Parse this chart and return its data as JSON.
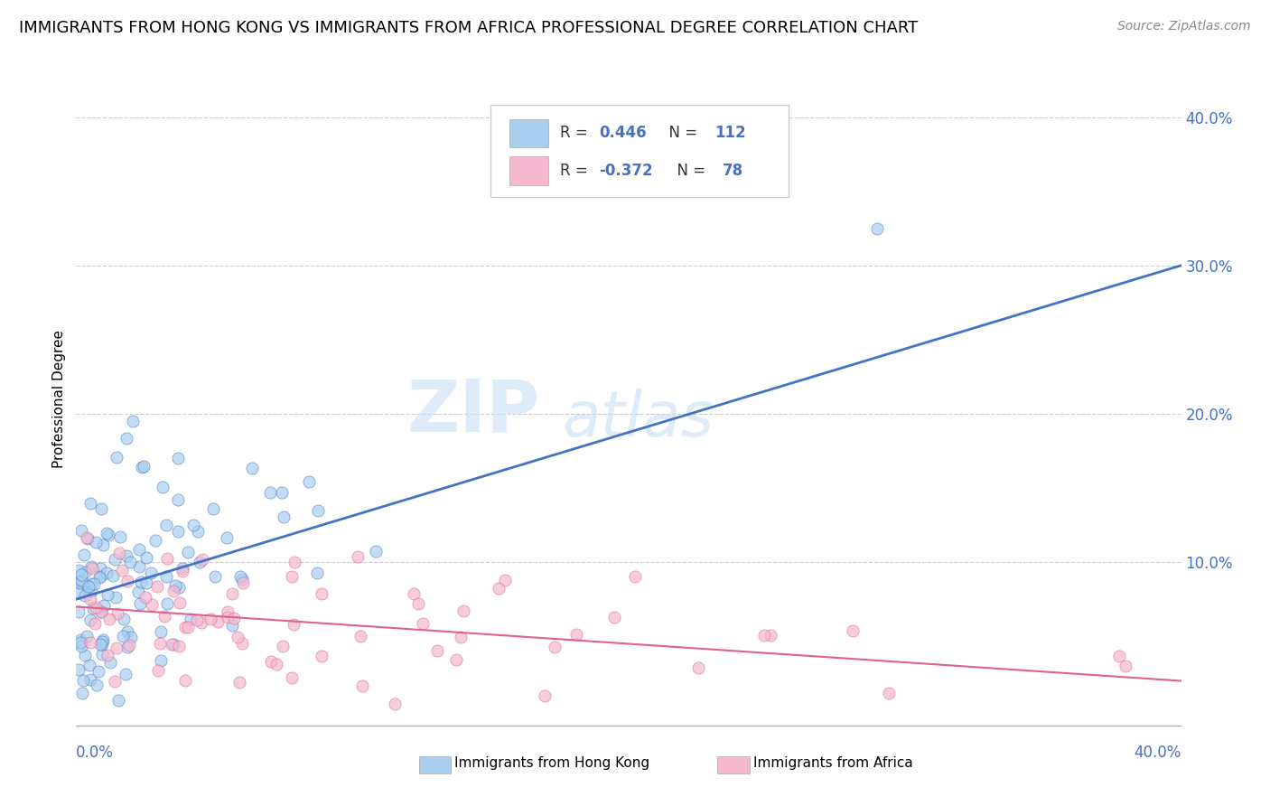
{
  "title": "IMMIGRANTS FROM HONG KONG VS IMMIGRANTS FROM AFRICA PROFESSIONAL DEGREE CORRELATION CHART",
  "source": "Source: ZipAtlas.com",
  "ylabel": "Professional Degree",
  "y_tick_vals": [
    0.1,
    0.2,
    0.3,
    0.4
  ],
  "xlim": [
    0.0,
    0.4
  ],
  "ylim": [
    -0.01,
    0.43
  ],
  "legend_color1": "#a8cff0",
  "legend_color2": "#f5b8ce",
  "scatter_color1": "#a8cff0",
  "scatter_color2": "#f5b8ce",
  "line_color1": "#4472c4",
  "line_color2": "#e06090",
  "label_color": "#4472c4",
  "legend_text_color": "#4472c4",
  "legend_label_color": "#222222",
  "watermark": "ZIPatlas",
  "watermark_color": "#c8dff5",
  "background_color": "#ffffff",
  "grid_color": "#cccccc",
  "title_fontsize": 13,
  "source_fontsize": 10,
  "R1": 0.446,
  "N1": 112,
  "R2": -0.372,
  "N2": 78,
  "blue_line_x0": 0.0,
  "blue_line_y0": 0.075,
  "blue_line_x1": 0.4,
  "blue_line_y1": 0.3,
  "pink_line_x0": 0.0,
  "pink_line_y0": 0.07,
  "pink_line_x1": 0.4,
  "pink_line_y1": 0.02,
  "seed1": 42,
  "seed2": 77
}
